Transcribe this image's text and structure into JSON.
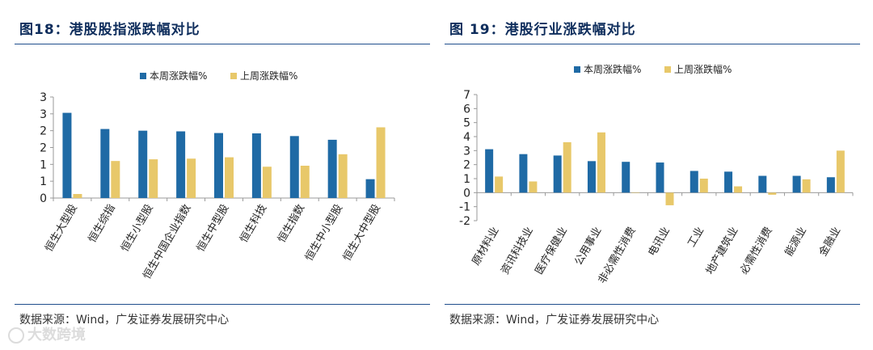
{
  "left": {
    "title": "图18：港股股指涨跌幅对比",
    "source": "数据来源：Wind，广发证券发展研究中心"
  },
  "right": {
    "title": "图 19：港股行业涨跌幅对比",
    "source": "数据来源：Wind，广发证券发展研究中心"
  },
  "watermark": "大数跨境",
  "colors": {
    "this_week": "#1f6aa5",
    "last_week": "#e8c86a",
    "axis": "#999999",
    "text": "#222222"
  },
  "chart_data": [
    {
      "type": "bar",
      "title": "",
      "xlabel": "",
      "ylabel": "",
      "ylim": [
        0,
        3
      ],
      "yticks": [
        0,
        0.5,
        1,
        1.5,
        2,
        2.5,
        3
      ],
      "ytick_labels": [
        "0",
        "1",
        "1",
        "2",
        "2",
        "3",
        "3"
      ],
      "legend_position": "top-center",
      "categories": [
        "恒生大型股",
        "恒生综指",
        "恒生小型股",
        "恒生中国企业指数",
        "恒生中型股",
        "恒生科技",
        "恒生指数",
        "恒生中小型股",
        "恒生大中型股"
      ],
      "series": [
        {
          "name": "本周涨跌幅%",
          "values": [
            2.53,
            2.05,
            2.0,
            1.98,
            1.93,
            1.92,
            1.84,
            1.73,
            0.56
          ]
        },
        {
          "name": "上周涨跌幅%",
          "values": [
            0.12,
            1.1,
            1.15,
            1.17,
            1.21,
            0.93,
            0.96,
            1.3,
            2.1
          ]
        }
      ]
    },
    {
      "type": "bar",
      "title": "",
      "xlabel": "",
      "ylabel": "",
      "ylim": [
        -2,
        7
      ],
      "yticks": [
        -2,
        -1,
        0,
        1,
        2,
        3,
        4,
        5,
        6,
        7
      ],
      "ytick_labels": [
        "-2",
        "-1",
        "0",
        "1",
        "2",
        "3",
        "4",
        "5",
        "6",
        "7"
      ],
      "legend_position": "top-center",
      "categories": [
        "原材料业",
        "资讯科技业",
        "医疗保健业",
        "公用事业",
        "非必需性消费",
        "电讯业",
        "工业",
        "地产建筑业",
        "必需性消费",
        "能源业",
        "金融业"
      ],
      "series": [
        {
          "name": "本周涨跌幅%",
          "values": [
            3.1,
            2.75,
            2.65,
            2.25,
            2.2,
            2.15,
            1.55,
            1.5,
            1.2,
            1.2,
            1.1
          ]
        },
        {
          "name": "上周涨跌幅%",
          "values": [
            1.15,
            0.8,
            3.6,
            4.3,
            0.0,
            -0.9,
            1.0,
            0.45,
            -0.15,
            0.95,
            3.0
          ]
        }
      ]
    }
  ]
}
